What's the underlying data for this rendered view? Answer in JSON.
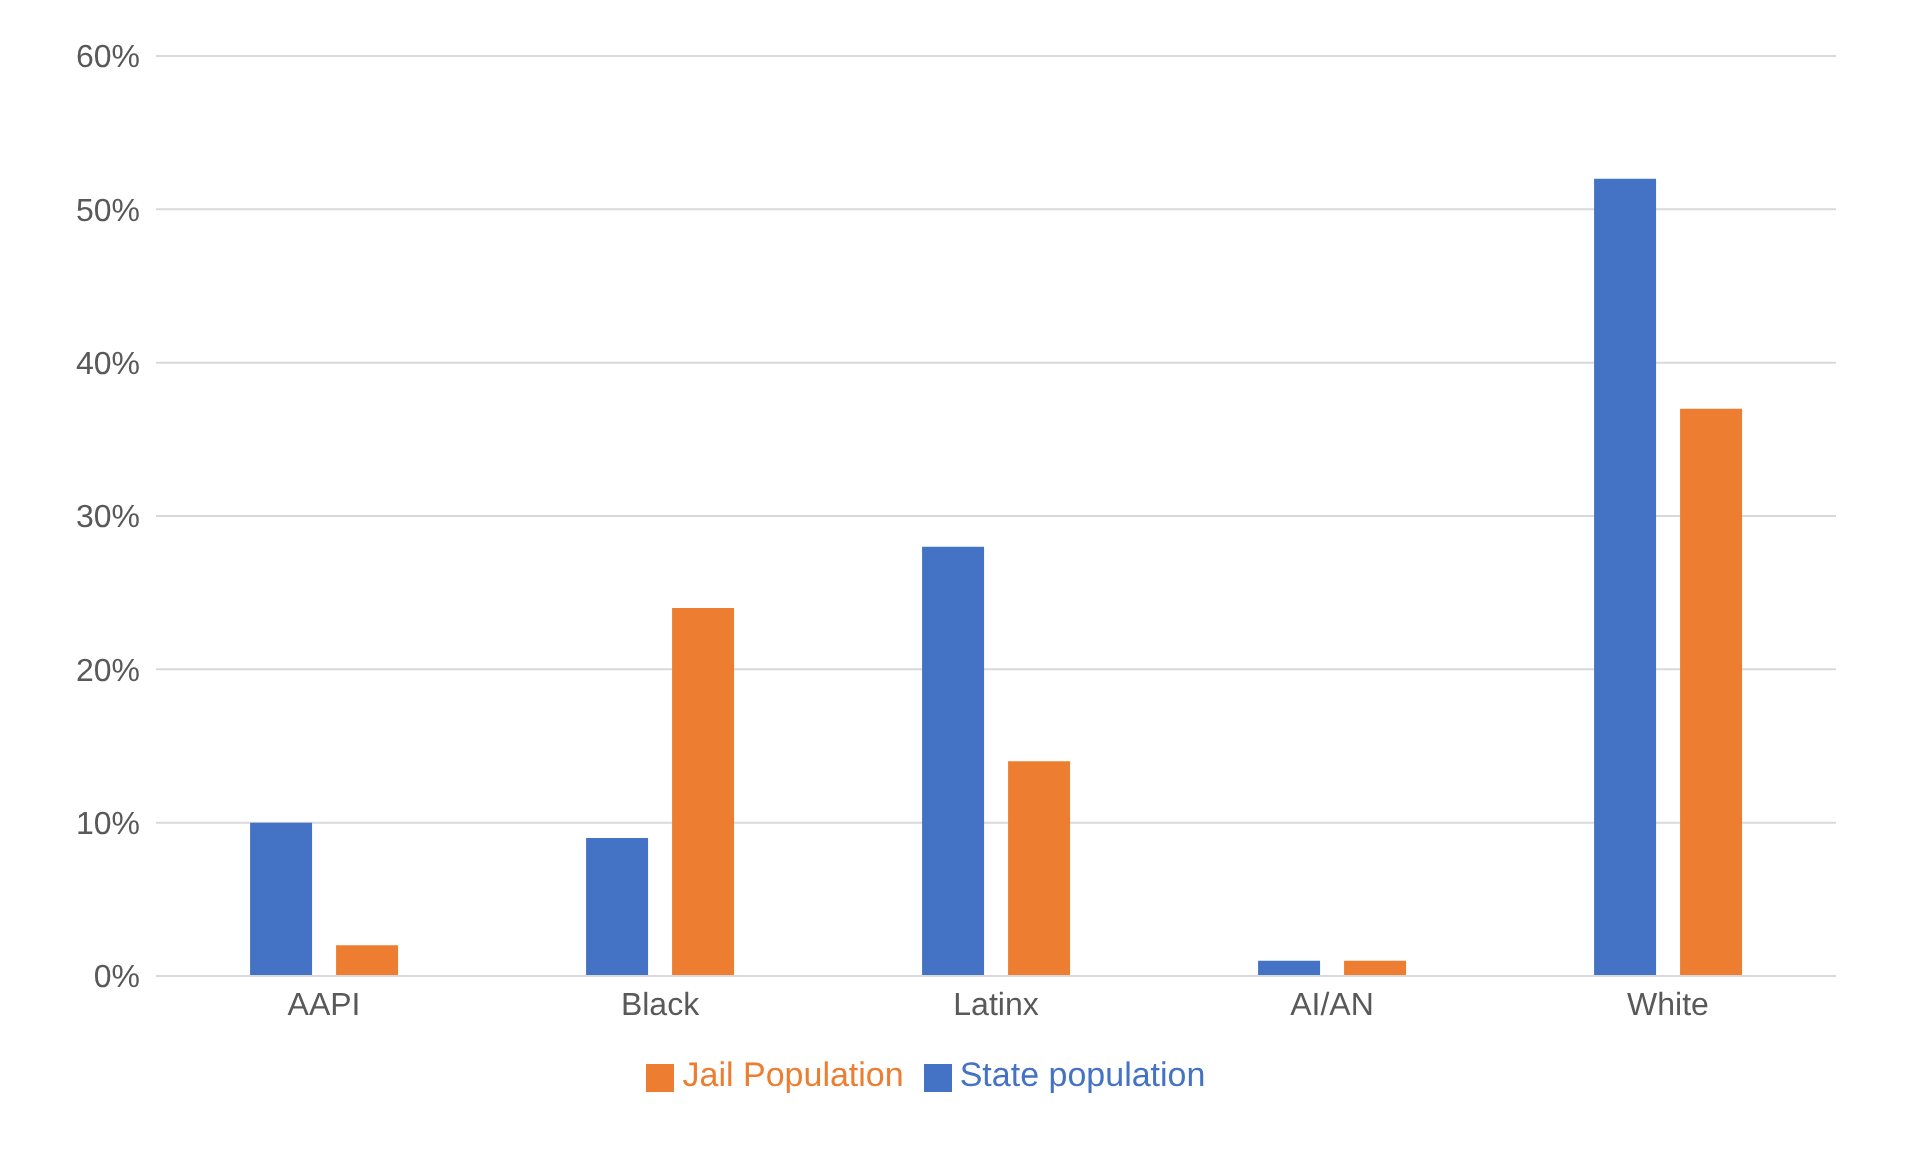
{
  "chart_data": {
    "type": "bar",
    "categories": [
      "AAPI",
      "Black",
      "Latinx",
      "AI/AN",
      "White"
    ],
    "series": [
      {
        "name": "State population",
        "color": "#4472c4",
        "values": [
          10,
          9,
          28,
          1,
          52
        ]
      },
      {
        "name": "Jail Population",
        "color": "#ed7d31",
        "values": [
          2,
          24,
          14,
          1,
          37
        ]
      }
    ],
    "ylim": [
      0,
      60
    ],
    "yticks": [
      {
        "value": 0,
        "label": "0%"
      },
      {
        "value": 10,
        "label": "10%"
      },
      {
        "value": 20,
        "label": "20%"
      },
      {
        "value": 30,
        "label": "30%"
      },
      {
        "value": 40,
        "label": "40%"
      },
      {
        "value": 50,
        "label": "50%"
      },
      {
        "value": 60,
        "label": "60%"
      }
    ],
    "grid": "y",
    "legend": "bottom"
  }
}
